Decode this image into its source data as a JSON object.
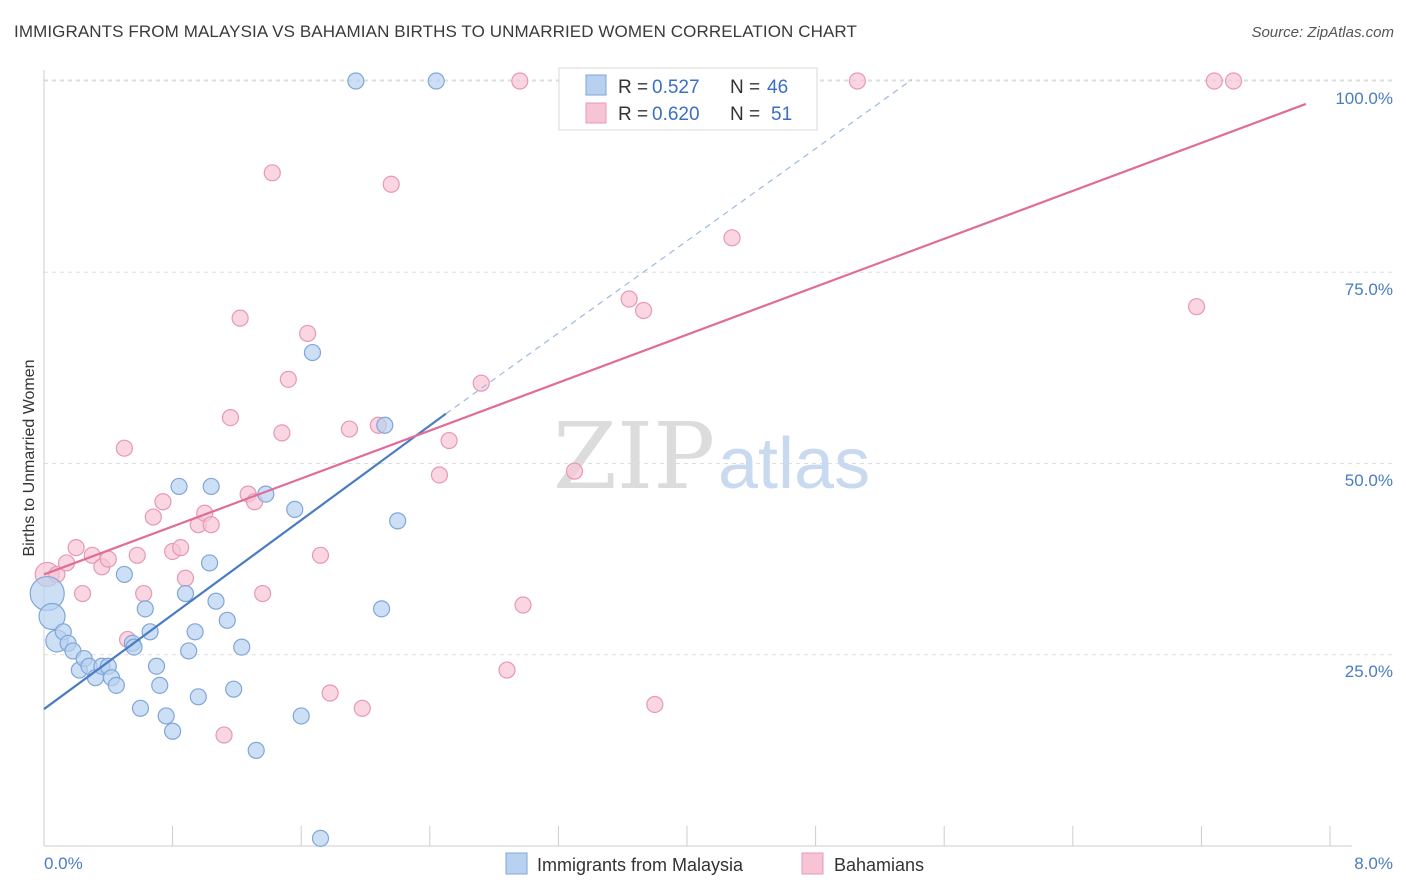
{
  "title": "IMMIGRANTS FROM MALAYSIA VS BAHAMIAN BIRTHS TO UNMARRIED WOMEN CORRELATION CHART",
  "source": "Source: ZipAtlas.com",
  "watermark": {
    "left": "ZIP",
    "right": "atlas"
  },
  "colors": {
    "blue": "#4a7cc4",
    "pink": "#e06c98",
    "blue_fill": "#b8d1f0",
    "pink_fill": "#f6c4d4"
  },
  "legend": {
    "r_label": "R =",
    "n_label": "N =",
    "rows": [
      {
        "r": "0.527",
        "n": "46"
      },
      {
        "r": "0.620",
        "n": "51"
      }
    ]
  },
  "chart_data": {
    "type": "scatter",
    "title": "IMMIGRANTS FROM MALAYSIA VS BAHAMIAN BIRTHS TO UNMARRIED WOMEN CORRELATION CHART",
    "xlabel": "",
    "ylabel": "Births to Unmarried Women",
    "xlim": [
      0,
      8
    ],
    "ylim": [
      0,
      102
    ],
    "x_tick_labels": [
      "0.0%",
      "8.0%"
    ],
    "y_ticks": [
      25,
      50,
      75,
      100
    ],
    "y_tick_labels": [
      "25.0%",
      "50.0%",
      "75.0%",
      "100.0%"
    ],
    "grid": true,
    "legend_position": "top-center",
    "series": [
      {
        "name": "Immigrants from Malaysia",
        "color": "#4a7cc4",
        "r": 0.527,
        "n": 46,
        "trend": {
          "x0": 0.0,
          "y0": 17.9,
          "x1": 2.5,
          "y1": 56.5,
          "extend_x1": 5.4,
          "extend_y1": 100.2
        },
        "points": [
          [
            0.02,
            33.0
          ],
          [
            0.05,
            30.0
          ],
          [
            0.08,
            26.8
          ],
          [
            0.12,
            28.0
          ],
          [
            0.15,
            26.5
          ],
          [
            0.18,
            25.5
          ],
          [
            0.22,
            23.0
          ],
          [
            0.25,
            24.5
          ],
          [
            0.28,
            23.5
          ],
          [
            0.32,
            22.0
          ],
          [
            0.36,
            23.5
          ],
          [
            0.4,
            23.5
          ],
          [
            0.42,
            22.0
          ],
          [
            0.45,
            21.0
          ],
          [
            0.5,
            35.5
          ],
          [
            0.55,
            26.5
          ],
          [
            0.56,
            26.0
          ],
          [
            0.6,
            18.0
          ],
          [
            0.63,
            31.0
          ],
          [
            0.66,
            28.0
          ],
          [
            0.7,
            23.5
          ],
          [
            0.72,
            21.0
          ],
          [
            0.76,
            17.0
          ],
          [
            0.8,
            15.0
          ],
          [
            0.84,
            47.0
          ],
          [
            0.88,
            33.0
          ],
          [
            0.9,
            25.5
          ],
          [
            0.94,
            28.0
          ],
          [
            0.96,
            19.5
          ],
          [
            1.03,
            37.0
          ],
          [
            1.04,
            47.0
          ],
          [
            1.07,
            32.0
          ],
          [
            1.14,
            29.5
          ],
          [
            1.18,
            20.5
          ],
          [
            1.23,
            26.0
          ],
          [
            1.32,
            12.5
          ],
          [
            1.38,
            46.0
          ],
          [
            1.56,
            44.0
          ],
          [
            1.6,
            17.0
          ],
          [
            1.67,
            64.5
          ],
          [
            1.72,
            1.0
          ],
          [
            1.94,
            100.0
          ],
          [
            2.12,
            55.0
          ],
          [
            2.1,
            31.0
          ],
          [
            2.2,
            42.5
          ],
          [
            2.44,
            100.0
          ]
        ]
      },
      {
        "name": "Bahamians",
        "color": "#e06c98",
        "r": 0.62,
        "n": 51,
        "trend": {
          "x0": 0.0,
          "y0": 35.5,
          "x1": 7.85,
          "y1": 97.0
        },
        "points": [
          [
            0.02,
            35.5
          ],
          [
            0.08,
            35.5
          ],
          [
            0.14,
            37.0
          ],
          [
            0.2,
            39.0
          ],
          [
            0.24,
            33.0
          ],
          [
            0.3,
            38.0
          ],
          [
            0.36,
            36.5
          ],
          [
            0.4,
            37.5
          ],
          [
            0.5,
            52.0
          ],
          [
            0.52,
            27.0
          ],
          [
            0.58,
            38.0
          ],
          [
            0.62,
            33.0
          ],
          [
            0.68,
            43.0
          ],
          [
            0.74,
            45.0
          ],
          [
            0.8,
            38.5
          ],
          [
            0.85,
            39.0
          ],
          [
            0.88,
            35.0
          ],
          [
            0.96,
            42.0
          ],
          [
            1.0,
            43.5
          ],
          [
            1.04,
            42.0
          ],
          [
            1.12,
            14.5
          ],
          [
            1.16,
            56.0
          ],
          [
            1.22,
            69.0
          ],
          [
            1.27,
            46.0
          ],
          [
            1.31,
            45.0
          ],
          [
            1.36,
            33.0
          ],
          [
            1.42,
            88.0
          ],
          [
            1.48,
            54.0
          ],
          [
            1.52,
            61.0
          ],
          [
            1.64,
            67.0
          ],
          [
            1.72,
            38.0
          ],
          [
            1.78,
            20.0
          ],
          [
            1.9,
            54.5
          ],
          [
            1.98,
            18.0
          ],
          [
            2.08,
            55.0
          ],
          [
            2.16,
            86.5
          ],
          [
            2.46,
            48.5
          ],
          [
            2.52,
            53.0
          ],
          [
            2.72,
            60.5
          ],
          [
            2.88,
            23.0
          ],
          [
            2.98,
            31.5
          ],
          [
            2.96,
            100.0
          ],
          [
            3.3,
            49.0
          ],
          [
            3.64,
            71.5
          ],
          [
            3.73,
            70.0
          ],
          [
            3.8,
            18.5
          ],
          [
            4.28,
            79.5
          ],
          [
            5.06,
            100.0
          ],
          [
            7.17,
            70.5
          ],
          [
            7.28,
            100.0
          ],
          [
            7.4,
            100.0
          ]
        ]
      }
    ]
  }
}
